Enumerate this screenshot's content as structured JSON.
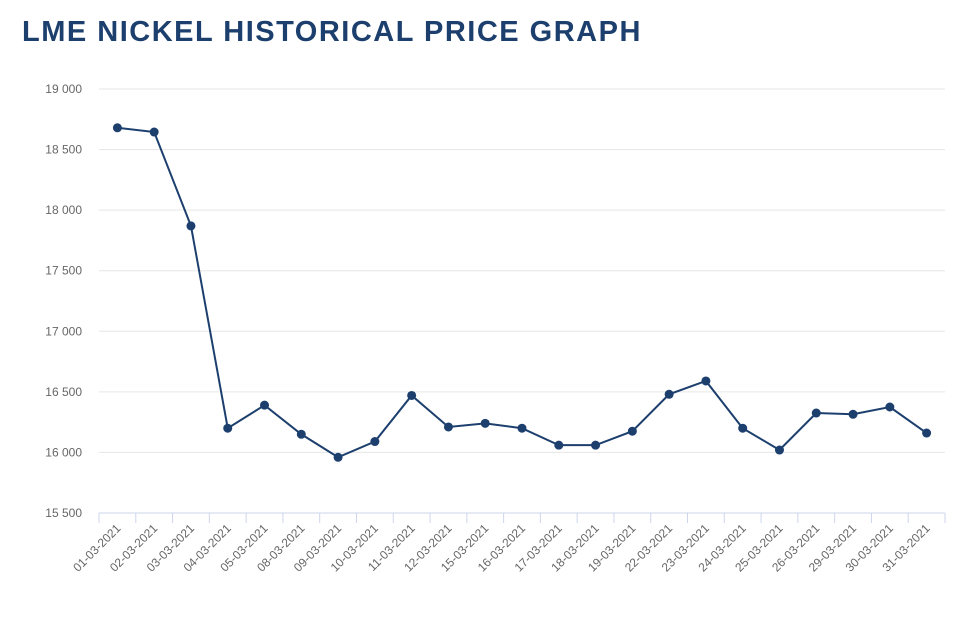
{
  "chart_data": {
    "type": "line",
    "title": "LME NICKEL HISTORICAL PRICE GRAPH",
    "xlabel": "",
    "ylabel": "",
    "ylim": [
      15500,
      19000
    ],
    "yticks": [
      15500,
      16000,
      16500,
      17000,
      17500,
      18000,
      18500,
      19000
    ],
    "ytick_labels": [
      "15 500",
      "16 000",
      "16 500",
      "17 000",
      "17 500",
      "18 000",
      "18 500",
      "19 000"
    ],
    "grid": true,
    "categories": [
      "01-03-2021",
      "02-03-2021",
      "03-03-2021",
      "04-03-2021",
      "05-03-2021",
      "08-03-2021",
      "09-03-2021",
      "10-03-2021",
      "11-03-2021",
      "12-03-2021",
      "15-03-2021",
      "16-03-2021",
      "17-03-2021",
      "18-03-2021",
      "19-03-2021",
      "22-03-2021",
      "23-03-2021",
      "24-03-2021",
      "25-03-2021",
      "26-03-2021",
      "29-03-2021",
      "30-03-2021",
      "31-03-2021"
    ],
    "series": [
      {
        "name": "LME Nickel",
        "color": "#1c3f6e",
        "values": [
          18680,
          18645,
          17870,
          16200,
          16390,
          16150,
          15960,
          16090,
          16470,
          16210,
          16240,
          16200,
          16060,
          16060,
          16175,
          16480,
          16590,
          16200,
          16020,
          16325,
          16315,
          16375,
          16160
        ]
      }
    ]
  }
}
